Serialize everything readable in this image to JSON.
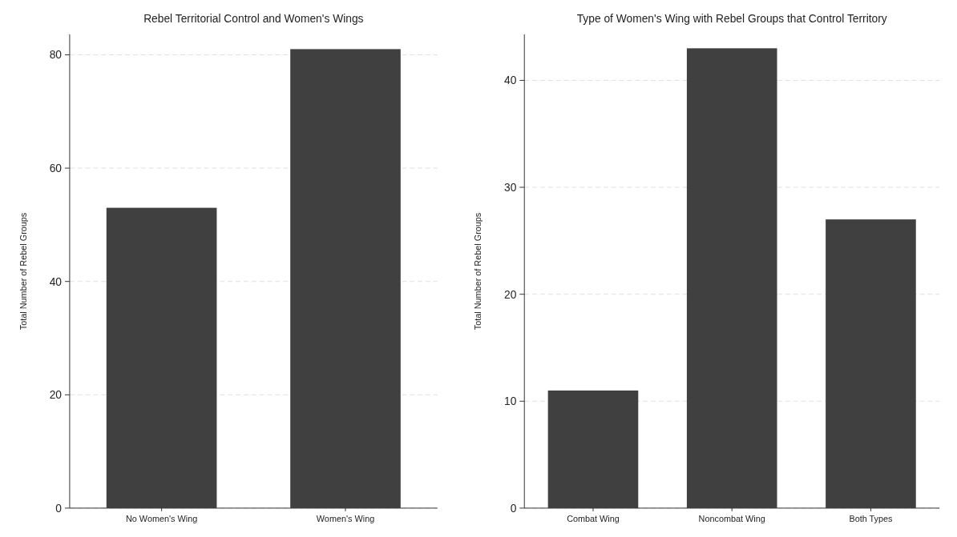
{
  "chart_data": [
    {
      "type": "bar",
      "title": "Rebel Territorial Control and Women's Wings",
      "ylabel": "Total Number of Rebel Groups",
      "categories": [
        "No Women's Wing",
        "Women's Wing"
      ],
      "values": [
        53,
        81
      ],
      "color": "#404040",
      "ylim": [
        0,
        83.6
      ],
      "yticks": [
        0,
        20,
        40,
        60,
        80
      ],
      "grid": "y"
    },
    {
      "type": "bar",
      "title": "Type of Women's Wing with Rebel Groups that Control Territory",
      "ylabel": "Total Number of Rebel Groups",
      "categories": [
        "Combat Wing",
        "Noncombat Wing",
        "Both Types"
      ],
      "values": [
        11,
        43,
        27
      ],
      "color": "#404040",
      "ylim": [
        0,
        44.3
      ],
      "yticks": [
        0,
        10,
        20,
        30,
        40
      ],
      "grid": "y"
    }
  ]
}
